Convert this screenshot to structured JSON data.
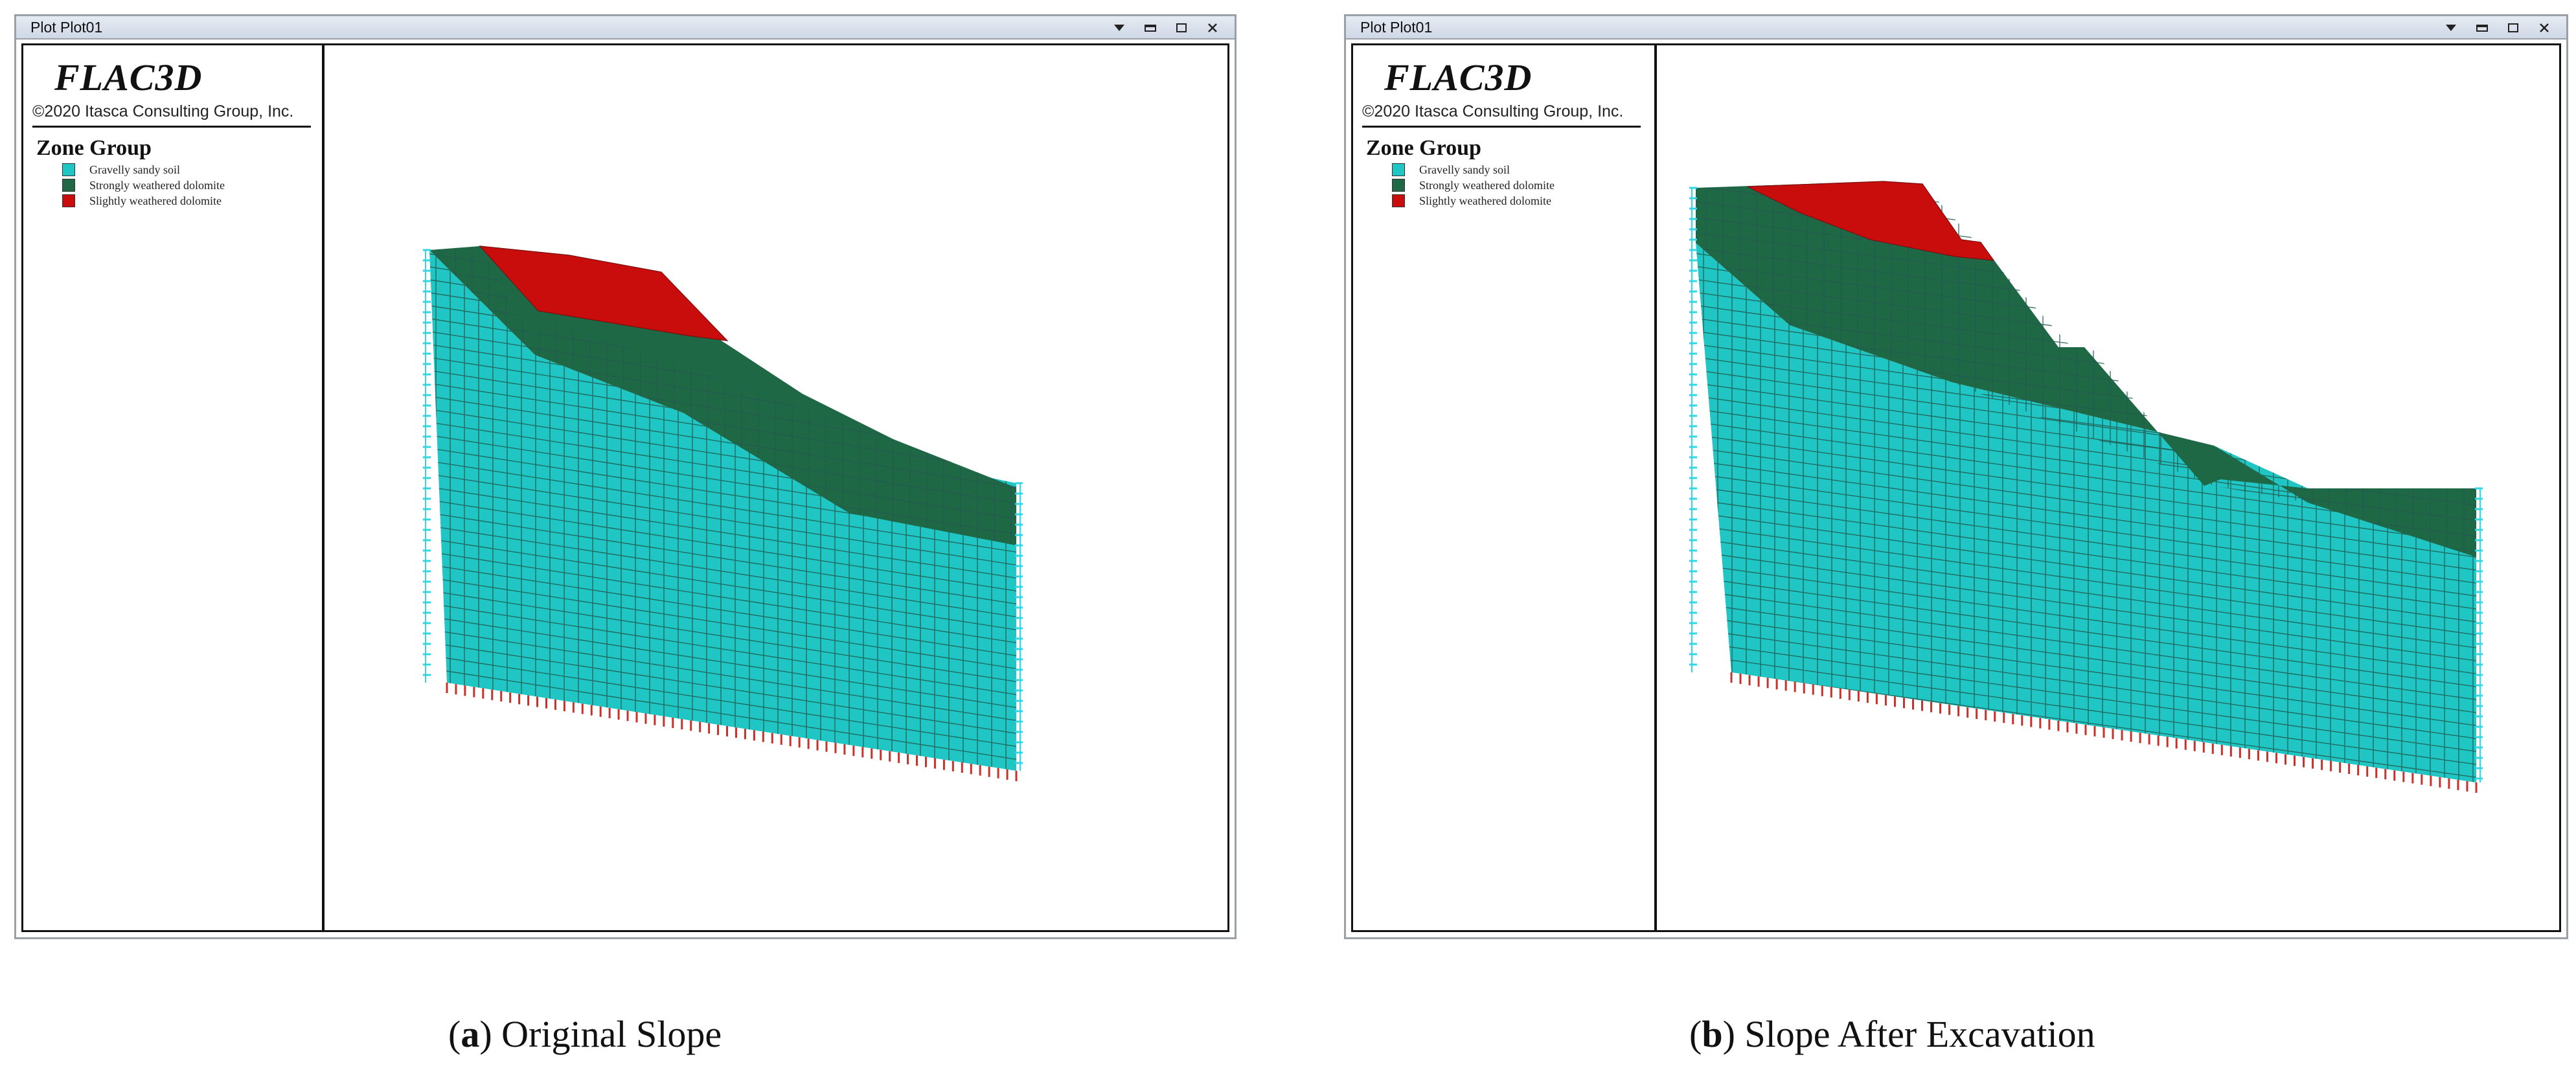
{
  "colors": {
    "soil": "#1fc6c4",
    "dolomite_strong": "#1e6846",
    "dolomite_slight": "#c90c0c",
    "mesh_line": "#235a50",
    "support_blue": "#2fd7e6",
    "support_red": "#c8302a"
  },
  "panels": [
    {
      "window_title": "Plot Plot01",
      "app_name": "FLAC3D",
      "copyright": "©2020 Itasca Consulting Group, Inc.",
      "legend_title": "Zone Group",
      "legend": [
        {
          "label": "Gravelly sandy soil",
          "color": "#1fc6c4"
        },
        {
          "label": "Strongly weathered dolomite",
          "color": "#1e6846"
        },
        {
          "label": "Slightly weathered dolomite",
          "color": "#c90c0c"
        }
      ],
      "caption_letter": "a",
      "caption_text": "Original Slope",
      "window_icons": [
        "dropdown-arrow-icon",
        "restore-icon",
        "maximize-icon",
        "close-icon"
      ]
    },
    {
      "window_title": "Plot Plot01",
      "app_name": "FLAC3D",
      "copyright": "©2020 Itasca Consulting Group, Inc.",
      "legend_title": "Zone Group",
      "legend": [
        {
          "label": "Gravelly sandy soil",
          "color": "#1fc6c4"
        },
        {
          "label": "Strongly weathered dolomite",
          "color": "#1e6846"
        },
        {
          "label": "Slightly weathered dolomite",
          "color": "#c90c0c"
        }
      ],
      "caption_letter": "b",
      "caption_text": "Slope After Excavation",
      "window_icons": [
        "dropdown-arrow-icon",
        "restore-icon",
        "maximize-icon",
        "close-icon"
      ]
    }
  ]
}
